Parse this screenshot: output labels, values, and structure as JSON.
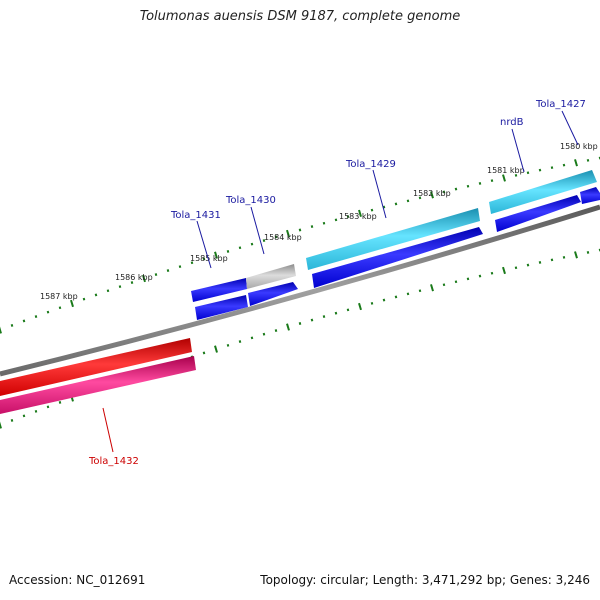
{
  "title": "Tolumonas auensis DSM 9187, complete genome",
  "footer": {
    "accession_label": "Accession:",
    "accession": "NC_012691",
    "topology_label": "Topology:",
    "topology": "circular",
    "length_label": "Length:",
    "length": "3,471,292 bp",
    "genes_label": "Genes:",
    "genes": "3,246"
  },
  "colors": {
    "backbone": "#7a7a7a",
    "tick": "#1a7a1a",
    "label_blue": "#1a1aa0",
    "label_red": "#cc0000",
    "cds_blue": "#1010e0",
    "cds_cyan": "#33ccee",
    "cds_red": "#ee0000",
    "cds_pink": "#e0207a",
    "cds_grey": "#b8b8b8"
  },
  "scale": {
    "unit": "kbp",
    "labels": [
      "1587 kbp",
      "1586 kbp",
      "1585 kbp",
      "1584 kbp",
      "1583 kbp",
      "1582 kbp",
      "1581 kbp",
      "1580 kbp"
    ]
  },
  "genes": [
    {
      "name": "Tola_1427",
      "color": "label_blue"
    },
    {
      "name": "nrdB",
      "color": "label_blue"
    },
    {
      "name": "Tola_1429",
      "color": "label_blue"
    },
    {
      "name": "Tola_1430",
      "color": "label_blue"
    },
    {
      "name": "Tola_1431",
      "color": "label_blue"
    },
    {
      "name": "Tola_1432",
      "color": "label_red"
    }
  ]
}
